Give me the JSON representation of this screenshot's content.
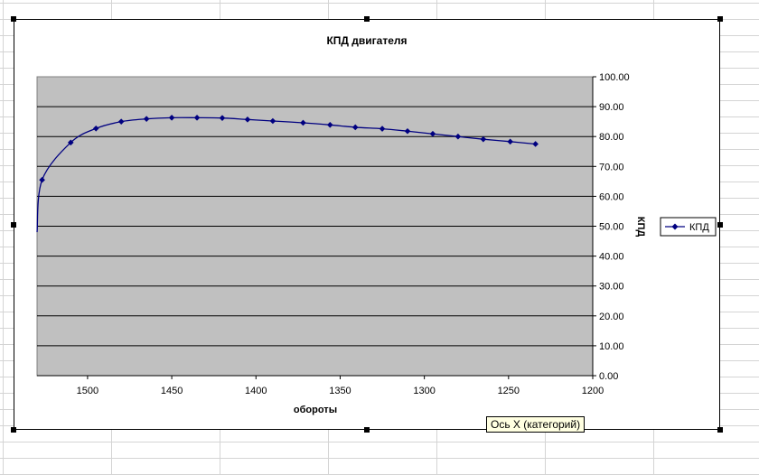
{
  "chart_data": {
    "type": "line",
    "title": "КПД двигателя",
    "xlabel": "обороты",
    "ylabel": "КПД",
    "x_reversed": true,
    "xlim": [
      1200,
      1530
    ],
    "ylim": [
      0,
      100
    ],
    "x_ticks": [
      "1500",
      "1450",
      "1400",
      "1350",
      "1300",
      "1250",
      "1200"
    ],
    "y_ticks": [
      "0.00",
      "10.00",
      "20.00",
      "30.00",
      "40.00",
      "50.00",
      "60.00",
      "70.00",
      "80.00",
      "90.00",
      "100.00"
    ],
    "grid": true,
    "legend": "right",
    "series": [
      {
        "name": "КПД",
        "color": "#000080",
        "marker": "diamond",
        "x": [
          1530,
          1527,
          1510,
          1495,
          1480,
          1465,
          1450,
          1435,
          1420,
          1405,
          1390,
          1372,
          1356,
          1341,
          1325,
          1310,
          1295,
          1280,
          1265,
          1249,
          1234
        ],
        "y": [
          48.0,
          65.5,
          78.0,
          82.7,
          85.0,
          85.9,
          86.3,
          86.3,
          86.2,
          85.7,
          85.2,
          84.6,
          83.9,
          83.1,
          82.6,
          81.8,
          80.9,
          80.0,
          79.1,
          78.3,
          77.5
        ],
        "marked": [
          false,
          true,
          true,
          true,
          true,
          true,
          true,
          true,
          true,
          true,
          true,
          true,
          true,
          true,
          true,
          true,
          true,
          true,
          true,
          true,
          true
        ]
      }
    ]
  },
  "tooltip": "Ось X (категорий)",
  "ui": {
    "plot_fill": "#c0c0c0",
    "grid_color": "#000000"
  }
}
